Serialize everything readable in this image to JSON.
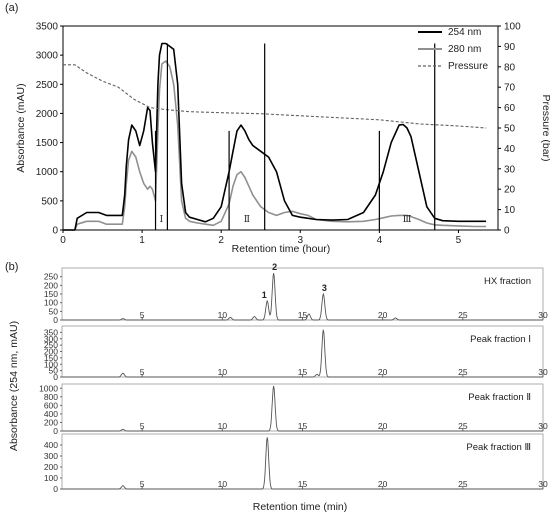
{
  "chart_data": [
    {
      "panel": "(a)",
      "type": "line",
      "xlabel": "Retention time (hour)",
      "ylabel": "Absorbance (mAU)",
      "y2label": "Pressure (bar)",
      "xlim": [
        0,
        5.5
      ],
      "ylim": [
        0,
        3500
      ],
      "y2lim": [
        0,
        100
      ],
      "x_ticks": [
        0,
        1,
        2,
        3,
        4,
        5
      ],
      "y_ticks": [
        0,
        500,
        1000,
        1500,
        2000,
        2500,
        3000,
        3500
      ],
      "y2_ticks": [
        0,
        10,
        20,
        30,
        40,
        50,
        60,
        70,
        80,
        90,
        100
      ],
      "grid": false,
      "legend_position": "top-right",
      "series": [
        {
          "name": "254 nm",
          "color": "#000000",
          "style": "solid",
          "axis": "left",
          "x": [
            0,
            0.15,
            0.18,
            0.3,
            0.45,
            0.55,
            0.75,
            0.78,
            0.8,
            0.83,
            0.87,
            0.92,
            0.97,
            1.02,
            1.07,
            1.1,
            1.13,
            1.17,
            1.2,
            1.22,
            1.25,
            1.3,
            1.35,
            1.4,
            1.45,
            1.5,
            1.55,
            1.6,
            1.7,
            1.8,
            1.9,
            2.0,
            2.1,
            2.15,
            2.2,
            2.25,
            2.3,
            2.35,
            2.4,
            2.5,
            2.6,
            2.7,
            2.8,
            2.9,
            3.0,
            3.1,
            3.2,
            3.4,
            3.6,
            3.8,
            3.95,
            4.05,
            4.15,
            4.25,
            4.3,
            4.35,
            4.4,
            4.5,
            4.6,
            4.7,
            4.8,
            5.0,
            5.2,
            5.35
          ],
          "y": [
            0,
            0,
            200,
            300,
            300,
            250,
            250,
            600,
            1100,
            1550,
            1800,
            1700,
            1450,
            1700,
            2100,
            2050,
            1500,
            1000,
            2500,
            3000,
            3200,
            3200,
            3150,
            3100,
            2500,
            800,
            300,
            220,
            180,
            140,
            200,
            400,
            1000,
            1350,
            1700,
            1800,
            1700,
            1550,
            1450,
            1350,
            1250,
            1000,
            500,
            250,
            220,
            200,
            180,
            170,
            180,
            300,
            600,
            1000,
            1500,
            1800,
            1810,
            1750,
            1600,
            1000,
            400,
            200,
            160,
            150,
            150,
            150
          ]
        },
        {
          "name": "280 nm",
          "color": "#909090",
          "style": "solid",
          "axis": "left",
          "x": [
            0,
            0.15,
            0.18,
            0.3,
            0.45,
            0.55,
            0.75,
            0.78,
            0.8,
            0.83,
            0.87,
            0.92,
            0.97,
            1.02,
            1.07,
            1.1,
            1.13,
            1.17,
            1.2,
            1.22,
            1.25,
            1.3,
            1.35,
            1.4,
            1.45,
            1.5,
            1.55,
            1.6,
            1.7,
            1.8,
            1.9,
            2.0,
            2.1,
            2.15,
            2.2,
            2.25,
            2.3,
            2.35,
            2.4,
            2.5,
            2.6,
            2.7,
            2.8,
            2.9,
            3.0,
            3.1,
            3.2,
            3.4,
            3.6,
            3.8,
            3.95,
            4.05,
            4.15,
            4.25,
            4.3,
            4.35,
            4.4,
            4.5,
            4.6,
            4.7,
            4.8,
            5.0,
            5.2,
            5.35
          ],
          "y": [
            0,
            0,
            100,
            150,
            150,
            100,
            100,
            400,
            800,
            1200,
            1350,
            1250,
            1000,
            800,
            700,
            750,
            700,
            500,
            1700,
            2400,
            2850,
            2900,
            2800,
            2500,
            1800,
            500,
            200,
            150,
            120,
            100,
            80,
            150,
            450,
            750,
            950,
            1000,
            900,
            750,
            600,
            400,
            300,
            250,
            300,
            320,
            280,
            250,
            180,
            150,
            140,
            150,
            180,
            210,
            240,
            250,
            250,
            250,
            230,
            180,
            120,
            90,
            80,
            70,
            60,
            60
          ]
        },
        {
          "name": "Pressure",
          "color": "#606060",
          "style": "dashed",
          "axis": "right",
          "x": [
            0,
            0.15,
            0.3,
            0.5,
            0.7,
            0.8,
            0.9,
            1.0,
            1.1,
            1.3,
            1.6,
            2.0,
            2.5,
            3.0,
            3.5,
            4.0,
            4.5,
            5.0,
            5.35
          ],
          "y": [
            81,
            81,
            77,
            73,
            70,
            67,
            64,
            62,
            60,
            59,
            58,
            57.5,
            57,
            56,
            55,
            54,
            52,
            51,
            50
          ]
        }
      ],
      "fractions": [
        {
          "label": "Ⅰ",
          "x_start": 1.17,
          "x_end": 1.32
        },
        {
          "label": "Ⅱ",
          "x_start": 2.1,
          "x_end": 2.55
        },
        {
          "label": "Ⅲ",
          "x_start": 4.0,
          "x_end": 4.7
        }
      ]
    },
    {
      "panel": "(b)",
      "type": "line",
      "xlabel": "Retention time (min)",
      "ylabel": "Absorbance (254 nm, mAU)",
      "xlim": [
        0,
        30
      ],
      "x_ticks": [
        5,
        10,
        15,
        20,
        25,
        30
      ],
      "subplots": [
        {
          "label": "HX fraction",
          "ylim": [
            0,
            300
          ],
          "y_ticks": [
            0,
            50,
            100,
            150,
            200,
            250
          ],
          "peaks": [
            {
              "x": 3.8,
              "y": 8
            },
            {
              "x": 10.5,
              "y": 15
            },
            {
              "x": 12.0,
              "y": 20
            },
            {
              "x": 12.8,
              "y": 110
            },
            {
              "x": 13.2,
              "y": 270
            },
            {
              "x": 15.4,
              "y": 35
            },
            {
              "x": 16.3,
              "y": 150
            },
            {
              "x": 20.8,
              "y": 12
            }
          ],
          "peak_labels": [
            {
              "label": "1",
              "x": 12.8,
              "y": 110
            },
            {
              "label": "2",
              "x": 13.2,
              "y": 270
            },
            {
              "label": "3",
              "x": 16.3,
              "y": 150
            }
          ]
        },
        {
          "label": "Peak fraction Ⅰ",
          "ylim": [
            0,
            400
          ],
          "y_ticks": [
            0,
            50,
            100,
            150,
            200,
            250,
            300,
            350
          ],
          "peaks": [
            {
              "x": 3.8,
              "y": 30
            },
            {
              "x": 15.9,
              "y": 20
            },
            {
              "x": 16.3,
              "y": 370
            }
          ]
        },
        {
          "label": "Peak fraction Ⅱ",
          "ylim": [
            0,
            1100
          ],
          "y_ticks": [
            0,
            200,
            400,
            600,
            800,
            1000
          ],
          "peaks": [
            {
              "x": 3.8,
              "y": 40
            },
            {
              "x": 13.2,
              "y": 1050
            }
          ]
        },
        {
          "label": "Peak fraction Ⅲ",
          "ylim": [
            0,
            500
          ],
          "y_ticks": [
            0,
            100,
            200,
            300,
            400
          ],
          "peaks": [
            {
              "x": 3.8,
              "y": 30
            },
            {
              "x": 12.8,
              "y": 470
            }
          ]
        }
      ]
    }
  ]
}
